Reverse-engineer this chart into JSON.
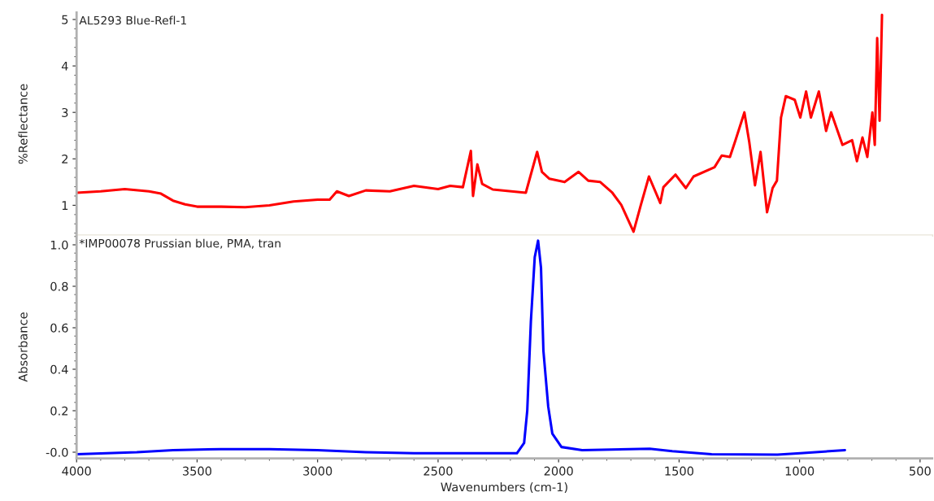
{
  "chart_data": [
    {
      "type": "line",
      "title": "AL5293 Blue-Refl-1",
      "ylabel": "%Reflectance",
      "tick_labels": "y",
      "grid": false,
      "xlim": [
        4000,
        450
      ],
      "ylim": [
        0.35,
        5.15
      ],
      "yticks": [
        1,
        2,
        3,
        4,
        5
      ],
      "series": [
        {
          "color": "#ff0000",
          "x": [
            4000,
            3900,
            3800,
            3700,
            3650,
            3600,
            3550,
            3500,
            3400,
            3300,
            3200,
            3100,
            3000,
            2950,
            2920,
            2870,
            2800,
            2700,
            2600,
            2500,
            2450,
            2397,
            2364,
            2355,
            2337,
            2317,
            2273,
            2136,
            2089,
            2069,
            2038,
            1975,
            1917,
            1877,
            1827,
            1777,
            1740,
            1689,
            1659,
            1625,
            1578,
            1565,
            1515,
            1472,
            1440,
            1353,
            1323,
            1289,
            1266,
            1229,
            1209,
            1185,
            1162,
            1135,
            1112,
            1094,
            1077,
            1057,
            1020,
            997,
            973,
            953,
            920,
            890,
            869,
            822,
            782,
            762,
            739,
            719,
            698,
            688,
            678,
            668,
            658
          ],
          "values": [
            1.27,
            1.3,
            1.35,
            1.3,
            1.25,
            1.1,
            1.02,
            0.97,
            0.97,
            0.96,
            1.0,
            1.08,
            1.12,
            1.12,
            1.3,
            1.2,
            1.32,
            1.3,
            1.42,
            1.35,
            1.42,
            1.39,
            2.17,
            1.2,
            1.88,
            1.46,
            1.34,
            1.27,
            2.15,
            1.72,
            1.57,
            1.5,
            1.72,
            1.53,
            1.5,
            1.27,
            1.01,
            0.43,
            1.0,
            1.62,
            1.05,
            1.39,
            1.66,
            1.37,
            1.62,
            1.82,
            2.07,
            2.04,
            2.4,
            3.0,
            2.37,
            1.43,
            2.15,
            0.85,
            1.37,
            1.53,
            2.89,
            3.35,
            3.27,
            2.89,
            3.45,
            2.89,
            3.45,
            2.6,
            3.0,
            2.3,
            2.4,
            1.95,
            2.46,
            2.04,
            3.0,
            2.3,
            4.6,
            2.82,
            5.1
          ]
        }
      ]
    },
    {
      "type": "line",
      "title": "*IMP00078 Prussian blue, PMA, tran",
      "ylabel": "Absorbance",
      "xlabel": "Wavenumbers (cm-1)",
      "grid": false,
      "xlim": [
        4000,
        450
      ],
      "xticks": [
        4000,
        3500,
        3000,
        2500,
        2000,
        1500,
        1000,
        500
      ],
      "ylim": [
        -0.03,
        1.045
      ],
      "yticks": [
        {
          "value": 0,
          "label": "-0.0"
        },
        0.2,
        0.4,
        0.6,
        0.8,
        {
          "value": 1.0,
          "label": "1.0"
        }
      ],
      "series": [
        {
          "color": "#0000ff",
          "x": [
            4000,
            3750,
            3600,
            3400,
            3200,
            3000,
            2800,
            2600,
            2400,
            2173,
            2143,
            2130,
            2115,
            2099,
            2085,
            2073,
            2063,
            2043,
            2026,
            1988,
            1902,
            1622,
            1528,
            1365,
            1092,
            997,
            812
          ],
          "values": [
            -0.01,
            0.0,
            0.01,
            0.015,
            0.015,
            0.01,
            0.0,
            -0.005,
            -0.005,
            -0.005,
            0.045,
            0.2,
            0.63,
            0.94,
            1.02,
            0.89,
            0.49,
            0.22,
            0.09,
            0.025,
            0.01,
            0.017,
            0.005,
            -0.01,
            -0.012,
            -0.005,
            0.01
          ]
        }
      ]
    }
  ]
}
